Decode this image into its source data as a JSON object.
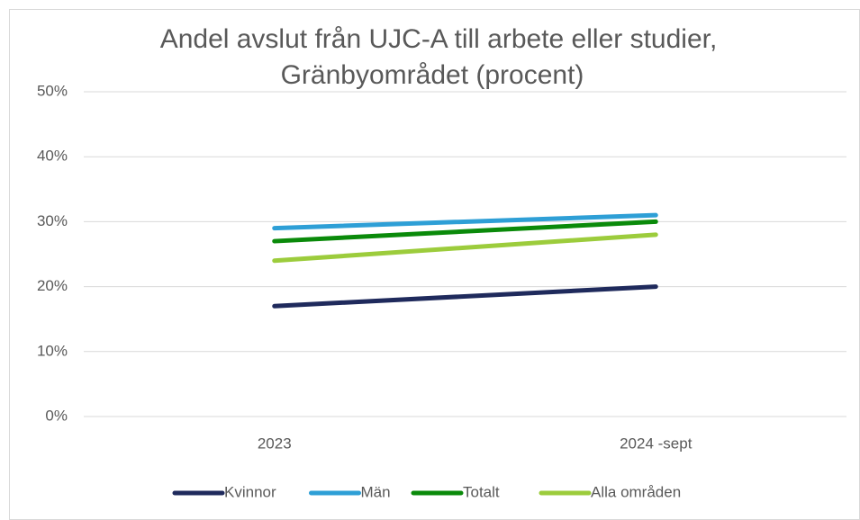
{
  "chart_data": {
    "type": "line",
    "title": [
      "Andel avslut från UJC-A till arbete eller studier,",
      "Gränbyområdet (procent)"
    ],
    "categories": [
      "2023",
      "2024 -sept"
    ],
    "series": [
      {
        "name": "Kvinnor",
        "color": "#1f2a5c",
        "values": [
          17,
          20
        ]
      },
      {
        "name": "Män",
        "color": "#2e9fd6",
        "values": [
          29,
          31
        ]
      },
      {
        "name": "Totalt",
        "color": "#0a8a0a",
        "values": [
          27,
          30
        ]
      },
      {
        "name": "Alla områden",
        "color": "#9ccc3c",
        "values": [
          24,
          28
        ]
      }
    ],
    "ylim": [
      0,
      50
    ],
    "yticks": [
      {
        "value": 0,
        "label": "0%"
      },
      {
        "value": 10,
        "label": "10%"
      },
      {
        "value": 20,
        "label": "20%"
      },
      {
        "value": 30,
        "label": "30%"
      },
      {
        "value": 40,
        "label": "40%"
      },
      {
        "value": 50,
        "label": "50%"
      }
    ],
    "grid": true,
    "legend": "bottom"
  }
}
